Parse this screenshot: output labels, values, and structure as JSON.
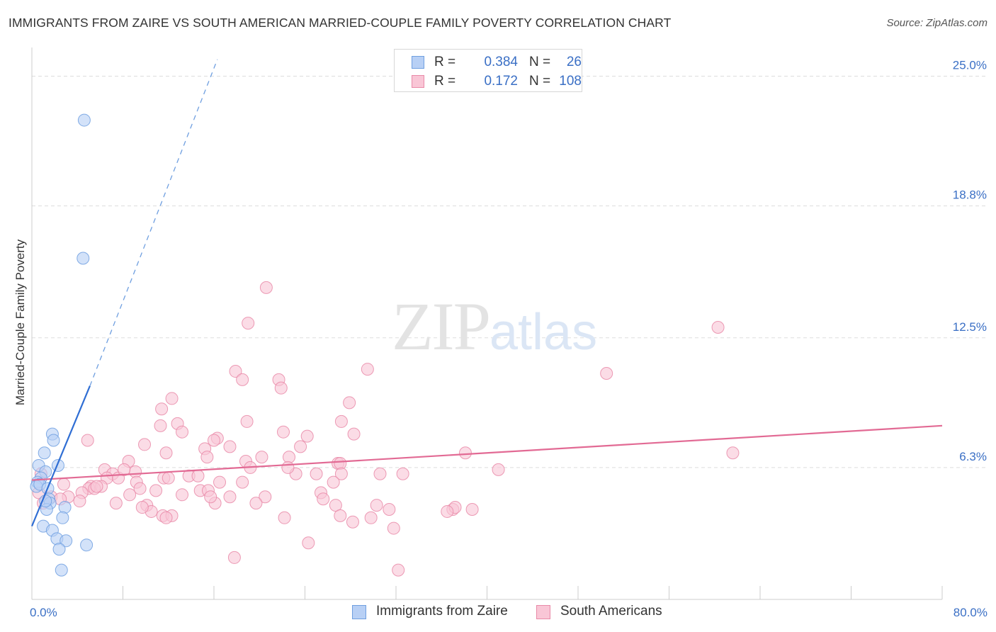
{
  "header": {
    "title": "IMMIGRANTS FROM ZAIRE VS SOUTH AMERICAN MARRIED-COUPLE FAMILY POVERTY CORRELATION CHART",
    "source": "Source: ZipAtlas.com"
  },
  "watermark": {
    "zip": "ZIP",
    "atlas": "atlas"
  },
  "legend": {
    "rows": [
      {
        "r_label": "R =",
        "r_value": "0.384",
        "n_label": "N =",
        "n_value": "26",
        "color": "#b8d0f5",
        "border": "#6f9fe0"
      },
      {
        "r_label": "R =",
        "r_value": "0.172",
        "n_label": "N =",
        "n_value": "108",
        "color": "#f9c6d6",
        "border": "#e98aa8"
      }
    ]
  },
  "bottom_legend": {
    "items": [
      {
        "label": "Immigrants from Zaire",
        "color": "#b8d0f5",
        "border": "#6f9fe0"
      },
      {
        "label": "South Americans",
        "color": "#f9c6d6",
        "border": "#e98aa8"
      }
    ]
  },
  "chart_data": {
    "type": "scatter",
    "title": "IMMIGRANTS FROM ZAIRE VS SOUTH AMERICAN MARRIED-COUPLE FAMILY POVERTY CORRELATION CHART",
    "xlabel": "",
    "ylabel": "Married-Couple Family Poverty",
    "xlim": [
      0,
      80
    ],
    "ylim": [
      0,
      26
    ],
    "x_tick_labels": {
      "0": "0.0%",
      "80": "80.0%"
    },
    "y_ticks": [
      6.3,
      12.5,
      18.8,
      25.0
    ],
    "y_tick_labels": [
      "6.3%",
      "12.5%",
      "18.8%",
      "25.0%"
    ],
    "grid": true,
    "legend_position": "top-center",
    "series": [
      {
        "name": "Immigrants from Zaire",
        "color": "#6f9fe0",
        "fill": "#b8d0f5",
        "trend": {
          "x": [
            0.0,
            5.1
          ],
          "y": [
            3.5,
            10.2
          ],
          "dashed_to": [
            16.3,
            25.8
          ]
        },
        "points": [
          [
            4.6,
            22.9
          ],
          [
            4.5,
            16.3
          ],
          [
            1.8,
            7.9
          ],
          [
            1.9,
            7.6
          ],
          [
            1.1,
            7.0
          ],
          [
            2.3,
            6.4
          ],
          [
            0.6,
            6.4
          ],
          [
            1.2,
            6.1
          ],
          [
            0.8,
            5.8
          ],
          [
            0.5,
            5.6
          ],
          [
            0.4,
            5.4
          ],
          [
            0.7,
            5.5
          ],
          [
            1.4,
            5.3
          ],
          [
            1.5,
            4.8
          ],
          [
            1.6,
            4.6
          ],
          [
            1.3,
            4.3
          ],
          [
            2.9,
            4.4
          ],
          [
            2.7,
            3.9
          ],
          [
            1.0,
            3.5
          ],
          [
            1.8,
            3.3
          ],
          [
            2.2,
            2.9
          ],
          [
            3.0,
            2.8
          ],
          [
            2.4,
            2.4
          ],
          [
            4.8,
            2.6
          ],
          [
            2.6,
            1.4
          ],
          [
            1.2,
            4.7
          ]
        ]
      },
      {
        "name": "South Americans",
        "color": "#e98aa8",
        "fill": "#f9c6d6",
        "trend": {
          "x": [
            0.0,
            80.0
          ],
          "y": [
            5.7,
            8.3
          ]
        },
        "points": [
          [
            20.6,
            14.9
          ],
          [
            19.0,
            13.2
          ],
          [
            60.3,
            13.0
          ],
          [
            29.5,
            11.0
          ],
          [
            17.9,
            10.9
          ],
          [
            50.5,
            10.8
          ],
          [
            18.5,
            10.5
          ],
          [
            21.7,
            10.5
          ],
          [
            21.9,
            10.1
          ],
          [
            12.3,
            9.6
          ],
          [
            27.9,
            9.4
          ],
          [
            11.4,
            9.1
          ],
          [
            18.9,
            8.5
          ],
          [
            27.2,
            8.5
          ],
          [
            12.8,
            8.4
          ],
          [
            11.3,
            8.3
          ],
          [
            22.1,
            8.0
          ],
          [
            13.2,
            8.0
          ],
          [
            28.3,
            7.9
          ],
          [
            24.2,
            7.8
          ],
          [
            16.3,
            7.7
          ],
          [
            16.0,
            7.6
          ],
          [
            4.9,
            7.6
          ],
          [
            9.9,
            7.4
          ],
          [
            17.4,
            7.3
          ],
          [
            15.2,
            7.2
          ],
          [
            23.6,
            7.3
          ],
          [
            11.8,
            7.0
          ],
          [
            61.6,
            7.0
          ],
          [
            38.1,
            7.0
          ],
          [
            15.4,
            6.8
          ],
          [
            20.2,
            6.8
          ],
          [
            22.6,
            6.8
          ],
          [
            18.8,
            6.6
          ],
          [
            8.5,
            6.6
          ],
          [
            26.9,
            6.5
          ],
          [
            27.1,
            6.5
          ],
          [
            19.2,
            6.3
          ],
          [
            41.0,
            6.2
          ],
          [
            6.4,
            6.2
          ],
          [
            9.1,
            6.1
          ],
          [
            7.1,
            6.0
          ],
          [
            27.2,
            6.0
          ],
          [
            23.2,
            6.0
          ],
          [
            30.6,
            6.0
          ],
          [
            25.0,
            6.0
          ],
          [
            32.6,
            6.0
          ],
          [
            13.8,
            5.9
          ],
          [
            11.6,
            5.8
          ],
          [
            12.0,
            5.8
          ],
          [
            14.6,
            5.9
          ],
          [
            6.6,
            5.8
          ],
          [
            7.6,
            5.8
          ],
          [
            8.1,
            6.2
          ],
          [
            9.2,
            5.6
          ],
          [
            16.5,
            5.6
          ],
          [
            18.5,
            5.6
          ],
          [
            26.5,
            5.6
          ],
          [
            2.8,
            5.5
          ],
          [
            5.2,
            5.4
          ],
          [
            6.1,
            5.4
          ],
          [
            9.5,
            5.3
          ],
          [
            5.0,
            5.3
          ],
          [
            5.5,
            5.3
          ],
          [
            10.9,
            5.2
          ],
          [
            14.8,
            5.2
          ],
          [
            15.5,
            5.2
          ],
          [
            25.4,
            5.1
          ],
          [
            4.4,
            5.1
          ],
          [
            8.6,
            5.0
          ],
          [
            3.2,
            4.9
          ],
          [
            1.7,
            4.9
          ],
          [
            17.4,
            4.9
          ],
          [
            20.5,
            4.9
          ],
          [
            25.6,
            4.8
          ],
          [
            2.5,
            4.8
          ],
          [
            4.2,
            4.7
          ],
          [
            16.1,
            4.6
          ],
          [
            19.7,
            4.6
          ],
          [
            10.1,
            4.5
          ],
          [
            26.7,
            4.5
          ],
          [
            30.3,
            4.5
          ],
          [
            31.4,
            4.3
          ],
          [
            37.0,
            4.3
          ],
          [
            38.7,
            4.3
          ],
          [
            37.2,
            4.4
          ],
          [
            10.5,
            4.2
          ],
          [
            36.5,
            4.2
          ],
          [
            7.4,
            4.6
          ],
          [
            9.7,
            4.4
          ],
          [
            11.5,
            4.0
          ],
          [
            12.3,
            4.0
          ],
          [
            27.1,
            4.0
          ],
          [
            22.2,
            3.9
          ],
          [
            29.8,
            3.9
          ],
          [
            28.2,
            3.7
          ],
          [
            31.8,
            3.4
          ],
          [
            0.6,
            5.1
          ],
          [
            1.0,
            4.6
          ],
          [
            24.3,
            2.7
          ],
          [
            17.8,
            2.0
          ],
          [
            32.2,
            1.4
          ],
          [
            13.2,
            5.0
          ],
          [
            0.8,
            6.0
          ],
          [
            11.8,
            3.9
          ],
          [
            15.7,
            4.9
          ],
          [
            22.5,
            6.3
          ],
          [
            5.7,
            5.4
          ]
        ]
      }
    ]
  }
}
